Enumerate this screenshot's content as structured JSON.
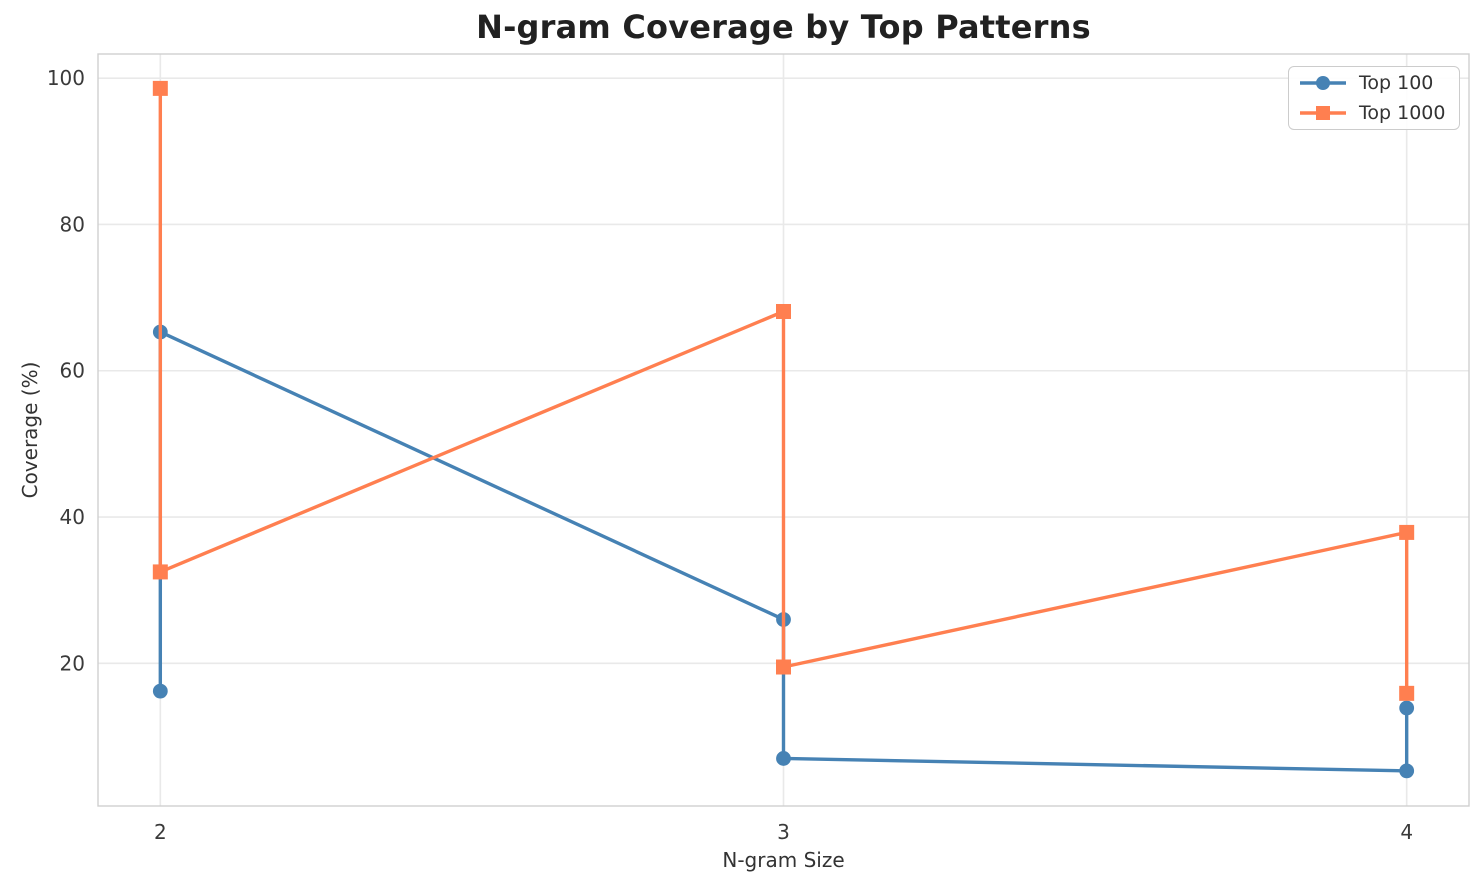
{
  "chart_data": {
    "type": "line",
    "title": "N-gram Coverage by Top Patterns",
    "xlabel": "N-gram Size",
    "ylabel": "Coverage (%)",
    "xlim": [
      1.9,
      4.1
    ],
    "ylim": [
      0.5,
      103.3
    ],
    "xticks": [
      2,
      3,
      4
    ],
    "yticks": [
      20,
      40,
      60,
      80,
      100
    ],
    "grid": true,
    "legend_position": "upper right",
    "series": [
      {
        "name": "Top 100",
        "color": "#4682B4",
        "marker": "circle",
        "points": [
          [
            2,
            16.2
          ],
          [
            2,
            65.3
          ],
          [
            3,
            26.0
          ],
          [
            3,
            7.0
          ],
          [
            4,
            5.3
          ],
          [
            4,
            13.9
          ]
        ]
      },
      {
        "name": "Top 1000",
        "color": "#FF7F50",
        "marker": "square",
        "points": [
          [
            2,
            98.6
          ],
          [
            2,
            32.5
          ],
          [
            3,
            68.1
          ],
          [
            3,
            19.5
          ],
          [
            4,
            37.9
          ],
          [
            4,
            15.9
          ]
        ]
      }
    ],
    "colors": {
      "grid": "#E9E9E9",
      "spine": "#CFCFCF",
      "title_text": "#212121",
      "tick_text": "#3A3A3A"
    }
  }
}
